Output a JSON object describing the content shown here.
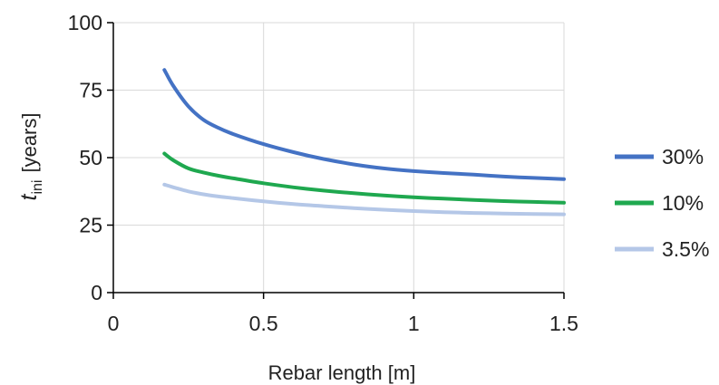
{
  "chart_data": {
    "type": "line",
    "xlabel": "Rebar length [m]",
    "ylabel": {
      "main": "t",
      "sub": "ini",
      "unit": "[years]"
    },
    "xlim": [
      0,
      1.5
    ],
    "ylim": [
      0,
      100
    ],
    "xticks": [
      0,
      0.5,
      1,
      1.5
    ],
    "xtick_labels": [
      "0",
      "0.5",
      "1",
      "1.5"
    ],
    "yticks": [
      0,
      25,
      50,
      75,
      100
    ],
    "ytick_labels": [
      "0",
      "25",
      "50",
      "75",
      "100"
    ],
    "grid": true,
    "legend_position": "right",
    "series": [
      {
        "name": "30%",
        "color": "#4472c4",
        "x": [
          0.17,
          0.2,
          0.25,
          0.3,
          0.35,
          0.4,
          0.5,
          0.6,
          0.7,
          0.8,
          0.9,
          1.0,
          1.1,
          1.2,
          1.3,
          1.4,
          1.5
        ],
        "y": [
          82.5,
          76.5,
          69,
          64,
          61,
          58.7,
          55,
          52,
          49.5,
          47.5,
          46,
          45,
          44.3,
          43.7,
          43,
          42.5,
          42
        ]
      },
      {
        "name": "10%",
        "color": "#1fa84f",
        "x": [
          0.17,
          0.2,
          0.25,
          0.3,
          0.35,
          0.4,
          0.5,
          0.6,
          0.7,
          0.8,
          0.9,
          1.0,
          1.1,
          1.2,
          1.3,
          1.4,
          1.5
        ],
        "y": [
          51.5,
          49,
          46,
          44.5,
          43.3,
          42.3,
          40.5,
          39,
          37.8,
          36.8,
          36,
          35.3,
          34.8,
          34.3,
          33.9,
          33.6,
          33.3
        ]
      },
      {
        "name": "3.5%",
        "color": "#b4c7e7",
        "x": [
          0.17,
          0.2,
          0.25,
          0.3,
          0.35,
          0.4,
          0.5,
          0.6,
          0.7,
          0.8,
          0.9,
          1.0,
          1.1,
          1.2,
          1.3,
          1.4,
          1.5
        ],
        "y": [
          40,
          39,
          37.5,
          36.4,
          35.6,
          35,
          33.8,
          32.8,
          32,
          31.3,
          30.7,
          30.2,
          29.8,
          29.5,
          29.3,
          29.1,
          29
        ]
      }
    ]
  }
}
